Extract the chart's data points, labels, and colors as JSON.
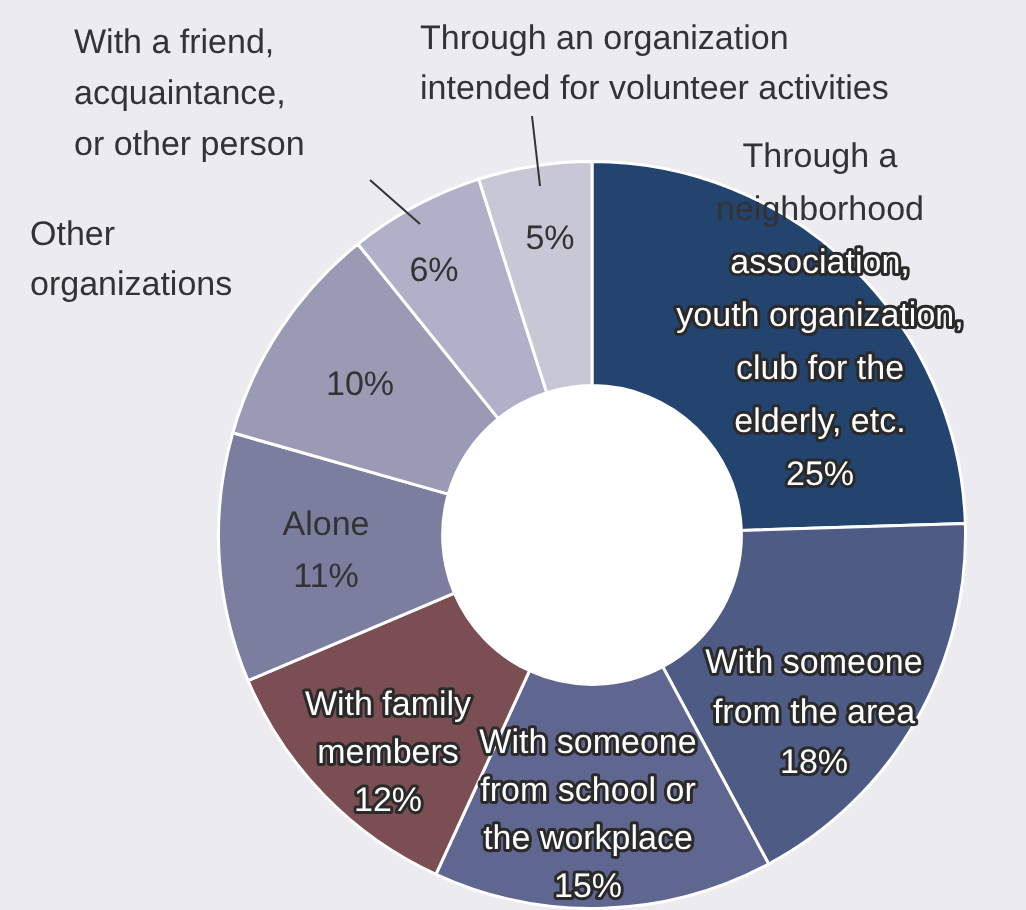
{
  "chart_data": {
    "type": "donut",
    "categories": [
      "Through a\nneighborhood\nassociation,\nyouth organization,\nclub for the\nelderly, etc.",
      "With someone\nfrom the area",
      "With someone\nfrom school or\nthe workplace",
      "With family\nmembers",
      "Alone",
      "Other\norganizations",
      "With a friend,\nacquaintance,\nor other person",
      "Through an organization\nintended for volunteer activities"
    ],
    "values": [
      25,
      18,
      15,
      12,
      11,
      10,
      6,
      5
    ],
    "colors": [
      "#22446f",
      "#4d5b85",
      "#5f6690",
      "#7a4e52",
      "#7b7e9e",
      "#9a9ab4",
      "#b0b1c8",
      "#c7c7d6"
    ],
    "value_labels": [
      "25%",
      "18%",
      "15%",
      "12%",
      "11%",
      "10%",
      "6%",
      "5%"
    ]
  }
}
